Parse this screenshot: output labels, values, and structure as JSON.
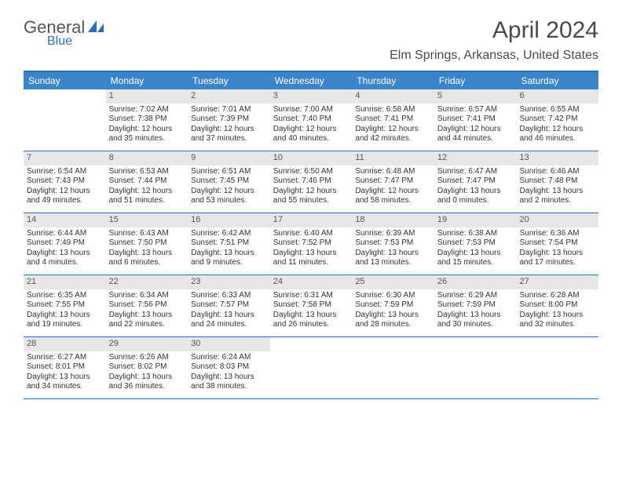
{
  "logo": {
    "word1": "General",
    "word2": "Blue"
  },
  "title": "April 2024",
  "location": "Elm Springs, Arkansas, United States",
  "colors": {
    "header_bg": "#3a85c9",
    "border": "#2a6fb5",
    "daynum_bg": "#e7e7e7",
    "text": "#333333",
    "title_text": "#4a4a4a"
  },
  "day_headers": [
    "Sunday",
    "Monday",
    "Tuesday",
    "Wednesday",
    "Thursday",
    "Friday",
    "Saturday"
  ],
  "weeks": [
    [
      {
        "n": "",
        "sr": "",
        "ss": "",
        "d1": "",
        "d2": ""
      },
      {
        "n": "1",
        "sr": "Sunrise: 7:02 AM",
        "ss": "Sunset: 7:38 PM",
        "d1": "Daylight: 12 hours",
        "d2": "and 35 minutes."
      },
      {
        "n": "2",
        "sr": "Sunrise: 7:01 AM",
        "ss": "Sunset: 7:39 PM",
        "d1": "Daylight: 12 hours",
        "d2": "and 37 minutes."
      },
      {
        "n": "3",
        "sr": "Sunrise: 7:00 AM",
        "ss": "Sunset: 7:40 PM",
        "d1": "Daylight: 12 hours",
        "d2": "and 40 minutes."
      },
      {
        "n": "4",
        "sr": "Sunrise: 6:58 AM",
        "ss": "Sunset: 7:41 PM",
        "d1": "Daylight: 12 hours",
        "d2": "and 42 minutes."
      },
      {
        "n": "5",
        "sr": "Sunrise: 6:57 AM",
        "ss": "Sunset: 7:41 PM",
        "d1": "Daylight: 12 hours",
        "d2": "and 44 minutes."
      },
      {
        "n": "6",
        "sr": "Sunrise: 6:55 AM",
        "ss": "Sunset: 7:42 PM",
        "d1": "Daylight: 12 hours",
        "d2": "and 46 minutes."
      }
    ],
    [
      {
        "n": "7",
        "sr": "Sunrise: 6:54 AM",
        "ss": "Sunset: 7:43 PM",
        "d1": "Daylight: 12 hours",
        "d2": "and 49 minutes."
      },
      {
        "n": "8",
        "sr": "Sunrise: 6:53 AM",
        "ss": "Sunset: 7:44 PM",
        "d1": "Daylight: 12 hours",
        "d2": "and 51 minutes."
      },
      {
        "n": "9",
        "sr": "Sunrise: 6:51 AM",
        "ss": "Sunset: 7:45 PM",
        "d1": "Daylight: 12 hours",
        "d2": "and 53 minutes."
      },
      {
        "n": "10",
        "sr": "Sunrise: 6:50 AM",
        "ss": "Sunset: 7:46 PM",
        "d1": "Daylight: 12 hours",
        "d2": "and 55 minutes."
      },
      {
        "n": "11",
        "sr": "Sunrise: 6:48 AM",
        "ss": "Sunset: 7:47 PM",
        "d1": "Daylight: 12 hours",
        "d2": "and 58 minutes."
      },
      {
        "n": "12",
        "sr": "Sunrise: 6:47 AM",
        "ss": "Sunset: 7:47 PM",
        "d1": "Daylight: 13 hours",
        "d2": "and 0 minutes."
      },
      {
        "n": "13",
        "sr": "Sunrise: 6:46 AM",
        "ss": "Sunset: 7:48 PM",
        "d1": "Daylight: 13 hours",
        "d2": "and 2 minutes."
      }
    ],
    [
      {
        "n": "14",
        "sr": "Sunrise: 6:44 AM",
        "ss": "Sunset: 7:49 PM",
        "d1": "Daylight: 13 hours",
        "d2": "and 4 minutes."
      },
      {
        "n": "15",
        "sr": "Sunrise: 6:43 AM",
        "ss": "Sunset: 7:50 PM",
        "d1": "Daylight: 13 hours",
        "d2": "and 6 minutes."
      },
      {
        "n": "16",
        "sr": "Sunrise: 6:42 AM",
        "ss": "Sunset: 7:51 PM",
        "d1": "Daylight: 13 hours",
        "d2": "and 9 minutes."
      },
      {
        "n": "17",
        "sr": "Sunrise: 6:40 AM",
        "ss": "Sunset: 7:52 PM",
        "d1": "Daylight: 13 hours",
        "d2": "and 11 minutes."
      },
      {
        "n": "18",
        "sr": "Sunrise: 6:39 AM",
        "ss": "Sunset: 7:53 PM",
        "d1": "Daylight: 13 hours",
        "d2": "and 13 minutes."
      },
      {
        "n": "19",
        "sr": "Sunrise: 6:38 AM",
        "ss": "Sunset: 7:53 PM",
        "d1": "Daylight: 13 hours",
        "d2": "and 15 minutes."
      },
      {
        "n": "20",
        "sr": "Sunrise: 6:36 AM",
        "ss": "Sunset: 7:54 PM",
        "d1": "Daylight: 13 hours",
        "d2": "and 17 minutes."
      }
    ],
    [
      {
        "n": "21",
        "sr": "Sunrise: 6:35 AM",
        "ss": "Sunset: 7:55 PM",
        "d1": "Daylight: 13 hours",
        "d2": "and 19 minutes."
      },
      {
        "n": "22",
        "sr": "Sunrise: 6:34 AM",
        "ss": "Sunset: 7:56 PM",
        "d1": "Daylight: 13 hours",
        "d2": "and 22 minutes."
      },
      {
        "n": "23",
        "sr": "Sunrise: 6:33 AM",
        "ss": "Sunset: 7:57 PM",
        "d1": "Daylight: 13 hours",
        "d2": "and 24 minutes."
      },
      {
        "n": "24",
        "sr": "Sunrise: 6:31 AM",
        "ss": "Sunset: 7:58 PM",
        "d1": "Daylight: 13 hours",
        "d2": "and 26 minutes."
      },
      {
        "n": "25",
        "sr": "Sunrise: 6:30 AM",
        "ss": "Sunset: 7:59 PM",
        "d1": "Daylight: 13 hours",
        "d2": "and 28 minutes."
      },
      {
        "n": "26",
        "sr": "Sunrise: 6:29 AM",
        "ss": "Sunset: 7:59 PM",
        "d1": "Daylight: 13 hours",
        "d2": "and 30 minutes."
      },
      {
        "n": "27",
        "sr": "Sunrise: 6:28 AM",
        "ss": "Sunset: 8:00 PM",
        "d1": "Daylight: 13 hours",
        "d2": "and 32 minutes."
      }
    ],
    [
      {
        "n": "28",
        "sr": "Sunrise: 6:27 AM",
        "ss": "Sunset: 8:01 PM",
        "d1": "Daylight: 13 hours",
        "d2": "and 34 minutes."
      },
      {
        "n": "29",
        "sr": "Sunrise: 6:26 AM",
        "ss": "Sunset: 8:02 PM",
        "d1": "Daylight: 13 hours",
        "d2": "and 36 minutes."
      },
      {
        "n": "30",
        "sr": "Sunrise: 6:24 AM",
        "ss": "Sunset: 8:03 PM",
        "d1": "Daylight: 13 hours",
        "d2": "and 38 minutes."
      },
      {
        "n": "",
        "sr": "",
        "ss": "",
        "d1": "",
        "d2": ""
      },
      {
        "n": "",
        "sr": "",
        "ss": "",
        "d1": "",
        "d2": ""
      },
      {
        "n": "",
        "sr": "",
        "ss": "",
        "d1": "",
        "d2": ""
      },
      {
        "n": "",
        "sr": "",
        "ss": "",
        "d1": "",
        "d2": ""
      }
    ]
  ]
}
